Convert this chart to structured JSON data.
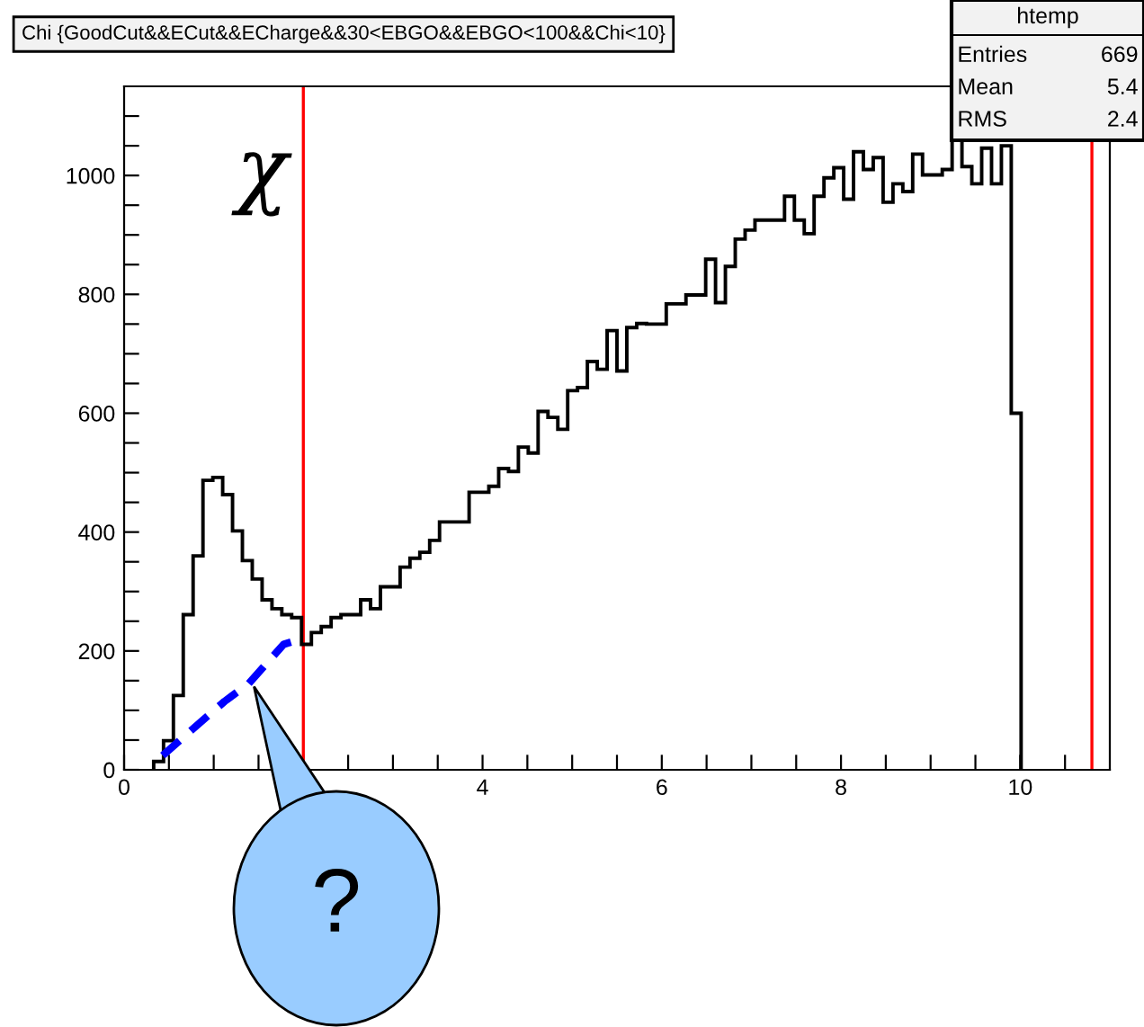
{
  "chart_data": {
    "type": "histogram",
    "title": "Chi {GoodCut&&ECut&&ECharge&&30<EBGO&&EBGO<100&&Chi<10}",
    "bins": [
      0.33,
      0.44,
      0.55,
      0.66,
      0.77,
      0.88,
      0.99,
      1.1,
      1.21,
      1.32,
      1.43,
      1.54,
      1.65,
      1.76,
      1.87,
      1.98,
      2.09,
      2.2,
      2.31,
      2.42,
      2.53,
      2.64,
      2.75,
      2.86,
      2.97,
      3.08,
      3.19,
      3.3,
      3.41,
      3.52,
      3.63,
      3.74,
      3.85,
      3.96,
      4.07,
      4.18,
      4.29,
      4.4,
      4.51,
      4.62,
      4.73,
      4.84,
      4.95,
      5.06,
      5.17,
      5.28,
      5.39,
      5.5,
      5.61,
      5.72,
      5.83,
      5.94,
      6.05,
      6.16,
      6.27,
      6.38,
      6.49,
      6.6,
      6.71,
      6.82,
      6.93,
      7.04,
      7.15,
      7.26,
      7.37,
      7.48,
      7.59,
      7.7,
      7.81,
      7.92,
      8.03,
      8.14,
      8.25,
      8.36,
      8.47,
      8.58,
      8.69,
      8.8,
      8.91,
      9.02,
      9.13,
      9.24,
      9.35,
      9.46,
      9.57,
      9.68,
      9.79,
      9.9,
      10.01
    ],
    "values": [
      14,
      49,
      125,
      261,
      360,
      487,
      492,
      463,
      402,
      352,
      321,
      286,
      271,
      261,
      256,
      211,
      231,
      241,
      256,
      261,
      261,
      286,
      271,
      308,
      308,
      341,
      356,
      366,
      386,
      417,
      417,
      417,
      467,
      467,
      477,
      507,
      502,
      543,
      533,
      603,
      593,
      573,
      638,
      643,
      687,
      674,
      739,
      671,
      744,
      751,
      750,
      750,
      784,
      784,
      799,
      799,
      859,
      786,
      847,
      893,
      908,
      925,
      925,
      925,
      965,
      925,
      902,
      965,
      996,
      1013,
      960,
      1040,
      1010,
      1030,
      955,
      986,
      973,
      1036,
      1001,
      1001,
      1010,
      1060,
      1015,
      986,
      1046,
      986,
      1050,
      600
    ],
    "color": "#000000",
    "series": [
      {
        "type": "line",
        "color": "#0000ff",
        "line_style": "dashed",
        "x": [
          0.43,
          0.73,
          1.12,
          1.39,
          1.78,
          1.91
        ],
        "values": [
          24,
          64,
          115,
          145,
          211,
          217
        ]
      }
    ],
    "xlim": [
      0,
      11
    ],
    "ylim": [
      0,
      1150
    ],
    "xticks": [
      0,
      {
        "value": 0.5,
        "label": null
      },
      {
        "value": 1,
        "label": null
      },
      {
        "value": 1.5,
        "label": null
      },
      {
        "value": 2,
        "label": null
      },
      {
        "value": 2.5,
        "label": null
      },
      {
        "value": 3,
        "label": null
      },
      {
        "value": 3.5,
        "label": null
      },
      4,
      {
        "value": 4.5,
        "label": null
      },
      {
        "value": 5,
        "label": null
      },
      {
        "value": 5.5,
        "label": null
      },
      6,
      {
        "value": 6.5,
        "label": null
      },
      {
        "value": 7,
        "label": null
      },
      {
        "value": 7.5,
        "label": null
      },
      8,
      {
        "value": 8.5,
        "label": null
      },
      {
        "value": 9,
        "label": null
      },
      {
        "value": 9.5,
        "label": null
      },
      10,
      {
        "value": 10.5,
        "label": null
      }
    ],
    "yticks": [
      0,
      {
        "value": 50,
        "label": null
      },
      {
        "value": 100,
        "label": null
      },
      {
        "value": 150,
        "label": null
      },
      200,
      {
        "value": 250,
        "label": null
      },
      {
        "value": 300,
        "label": null
      },
      {
        "value": 350,
        "label": null
      },
      400,
      {
        "value": 450,
        "label": null
      },
      {
        "value": 500,
        "label": null
      },
      {
        "value": 550,
        "label": null
      },
      600,
      {
        "value": 650,
        "label": null
      },
      {
        "value": 700,
        "label": null
      },
      {
        "value": 750,
        "label": null
      },
      800,
      {
        "value": 850,
        "label": null
      },
      {
        "value": 900,
        "label": null
      },
      {
        "value": 950,
        "label": null
      },
      1000,
      {
        "value": 1050,
        "label": null
      },
      {
        "value": 1100,
        "label": null
      }
    ],
    "ref_lines": [
      {
        "axis": "x",
        "value": 2,
        "color": "#ff0000"
      },
      {
        "axis": "x",
        "value": 10.8,
        "color": "#ff0000"
      }
    ],
    "grid": false,
    "annotations": [
      "htemp",
      "Entries 669",
      "Mean 5.4",
      "RMS 2.4",
      "χ",
      {
        "text": "?",
        "x": 1.45,
        "y": 140
      }
    ]
  }
}
